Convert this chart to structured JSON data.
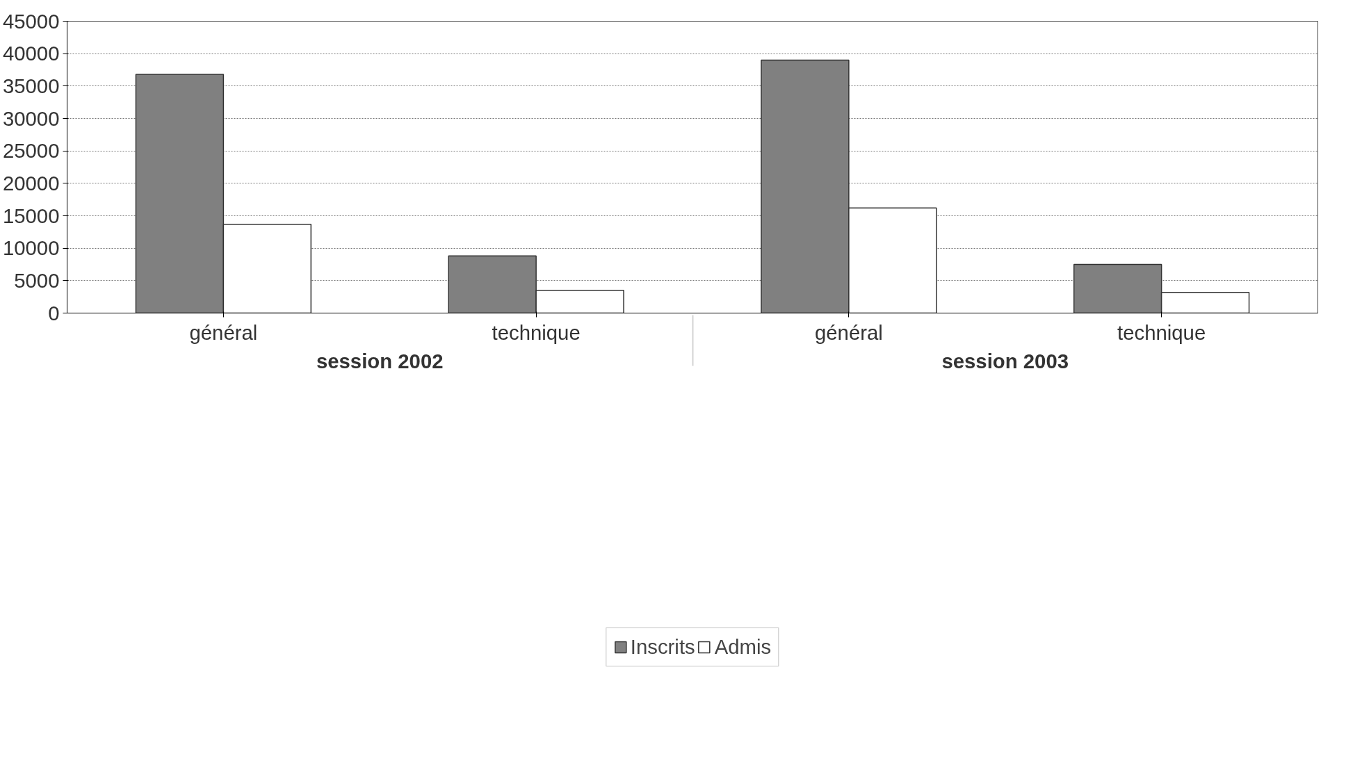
{
  "chart_data": {
    "type": "bar",
    "categories": [
      "général",
      "technique",
      "général",
      "technique"
    ],
    "series": [
      {
        "name": "Inscrits",
        "color": "#808080",
        "values": [
          36800,
          8800,
          39000,
          7500
        ]
      },
      {
        "name": "Admis",
        "color": "#ffffff",
        "values": [
          13700,
          3500,
          16200,
          3200
        ]
      }
    ],
    "annotations": [
      "session 2002",
      "session 2003"
    ],
    "ylim": [
      0,
      45000
    ],
    "yticks": [
      0,
      5000,
      10000,
      15000,
      20000,
      25000,
      30000,
      35000,
      40000,
      45000
    ],
    "grid": "y",
    "legend": "bottom"
  }
}
